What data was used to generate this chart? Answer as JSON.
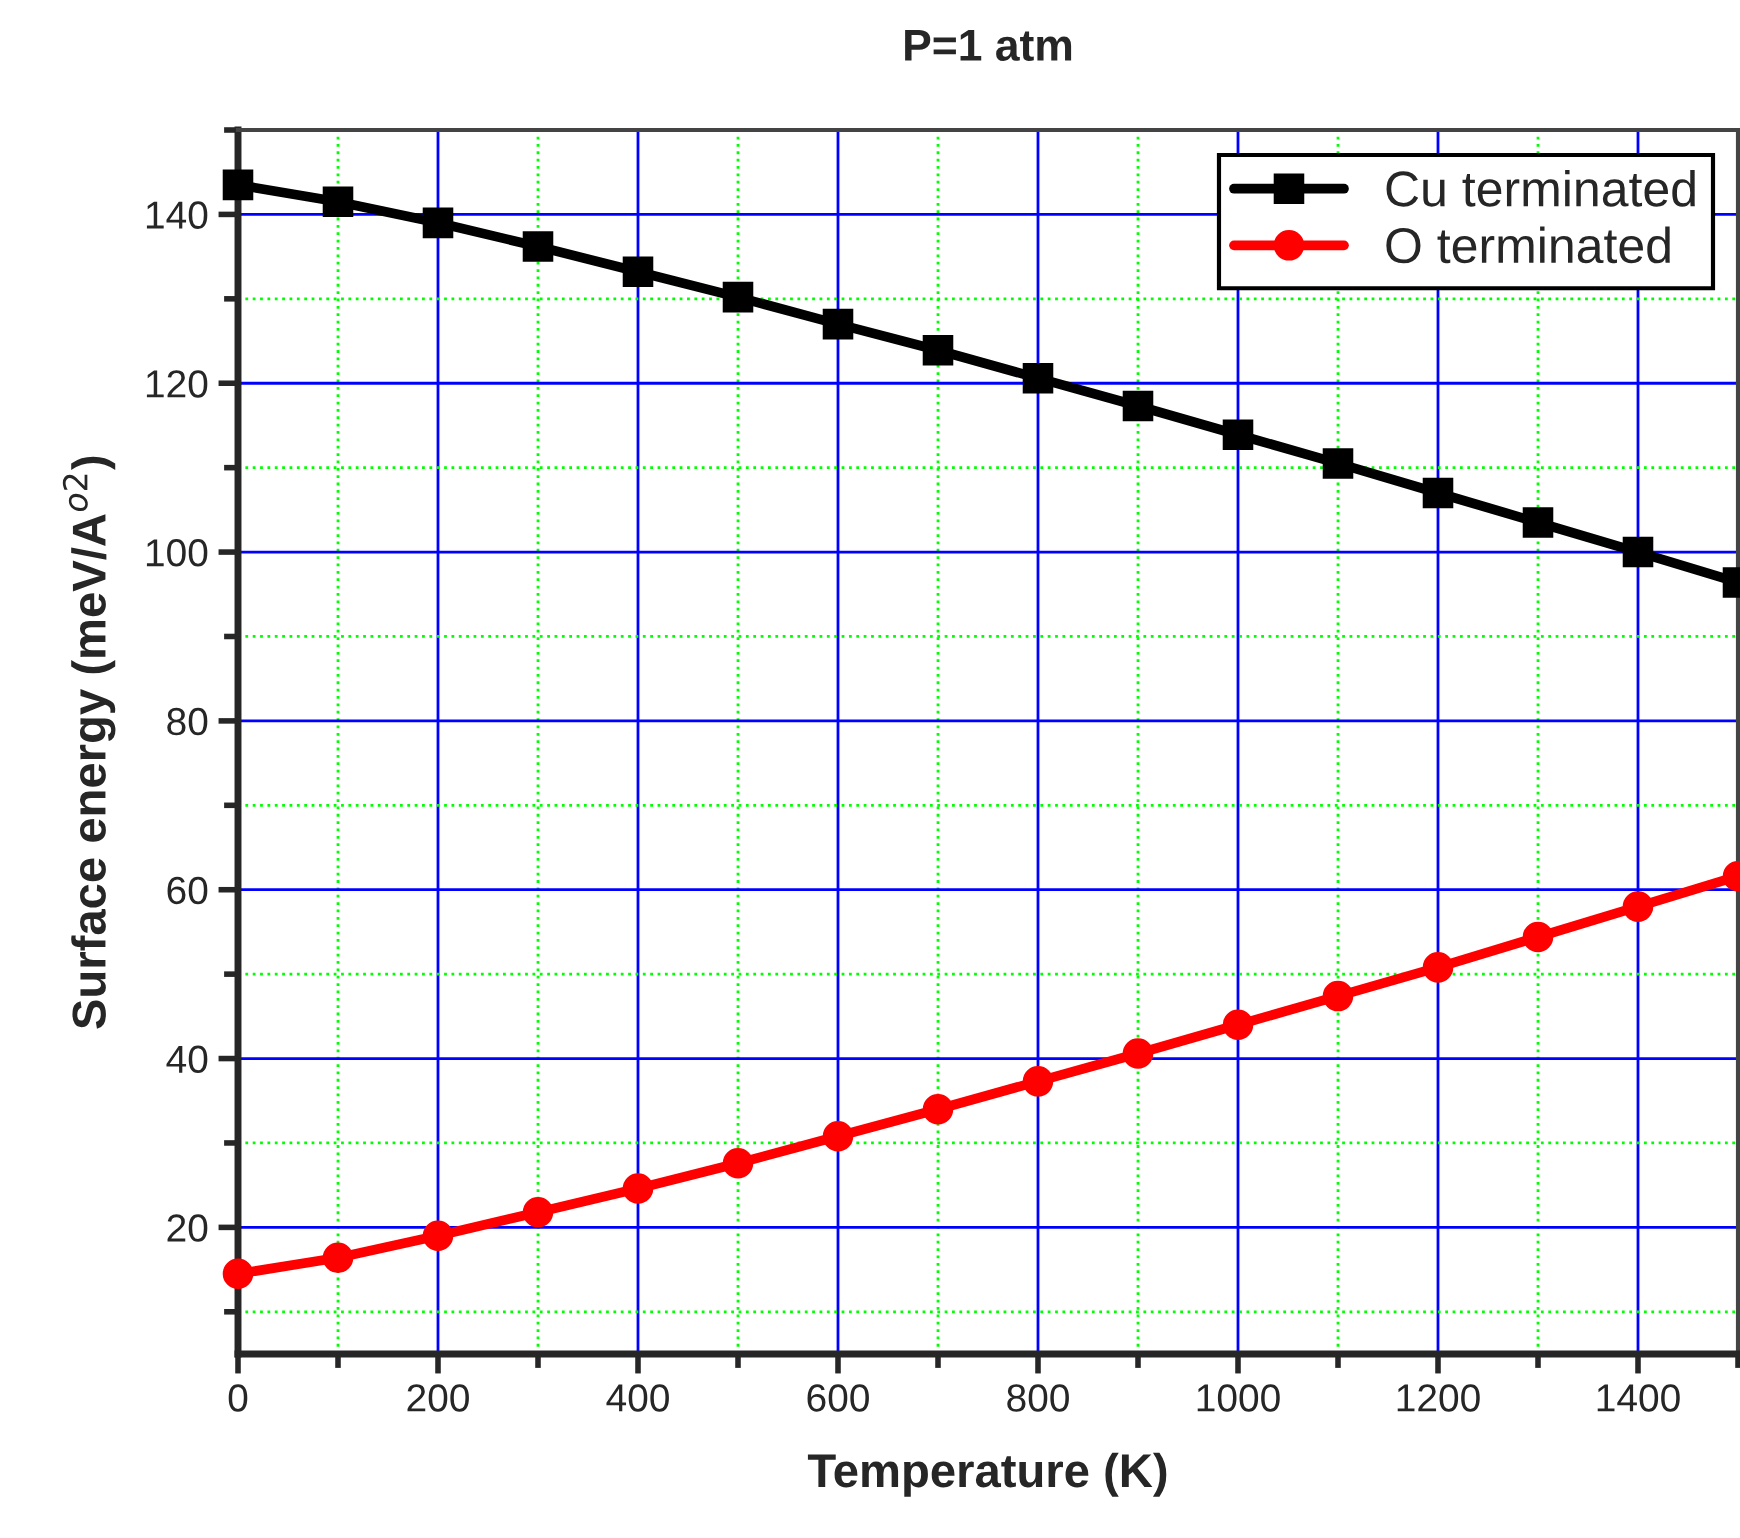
{
  "chart_data": {
    "type": "line",
    "title": "P=1 atm",
    "xlabel": "Temperature (K)",
    "ylabel": "Surface energy (meV/A$^{o2}$)",
    "x": [
      0,
      100,
      200,
      300,
      400,
      500,
      600,
      700,
      800,
      900,
      1000,
      1100,
      1200,
      1300,
      1400,
      1500
    ],
    "series": [
      {
        "name": "Cu terminated",
        "color": "#000000",
        "marker": "square",
        "values": [
          143.5,
          141.5,
          139,
          136.2,
          133.2,
          130.2,
          127,
          123.9,
          120.6,
          117.3,
          113.9,
          110.5,
          107,
          103.5,
          100,
          96.4
        ]
      },
      {
        "name": "O terminated",
        "color": "#ff0000",
        "marker": "circle",
        "values": [
          14.5,
          16.4,
          19,
          21.8,
          24.6,
          27.6,
          30.8,
          34,
          37.3,
          40.6,
          44,
          47.4,
          50.8,
          54.4,
          58,
          61.6
        ]
      }
    ],
    "xlim": [
      0,
      1500
    ],
    "xticks": [
      0,
      {
        "value": 100,
        "label": null
      },
      200,
      {
        "value": 300,
        "label": null
      },
      400,
      {
        "value": 500,
        "label": null
      },
      600,
      {
        "value": 700,
        "label": null
      },
      800,
      {
        "value": 900,
        "label": null
      },
      1000,
      {
        "value": 1100,
        "label": null
      },
      1200,
      {
        "value": 1300,
        "label": null
      },
      1400,
      {
        "value": 1500,
        "label": null
      }
    ],
    "ylim": [
      5,
      150
    ],
    "yticks": [
      {
        "value": 10,
        "label": null
      },
      20,
      {
        "value": 30,
        "label": null
      },
      40,
      {
        "value": 50,
        "label": null
      },
      60,
      {
        "value": 70,
        "label": null
      },
      80,
      {
        "value": 90,
        "label": null
      },
      100,
      {
        "value": 110,
        "label": null
      },
      120,
      {
        "value": 130,
        "label": null
      },
      140,
      {
        "value": 150,
        "label": null
      }
    ],
    "grid": true,
    "legend": "top right",
    "line_style": "solid"
  }
}
